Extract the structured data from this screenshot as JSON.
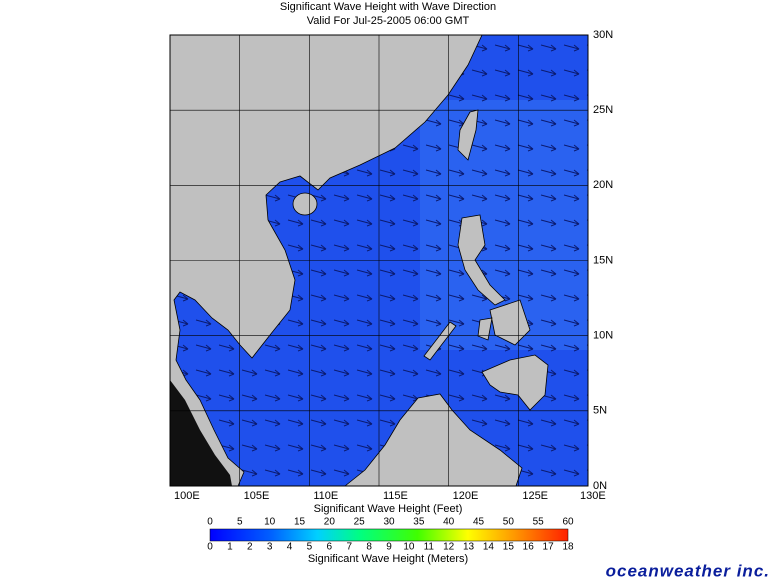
{
  "title": "Significant Wave Height with Wave Direction",
  "subtitle": "Valid For Jul-25-2005 06:00 GMT",
  "map": {
    "lon_range": [
      100,
      130
    ],
    "lat_range": [
      0,
      30
    ],
    "lon_ticks": [
      {
        "value": 100,
        "label": "100E"
      },
      {
        "value": 105,
        "label": "105E"
      },
      {
        "value": 110,
        "label": "110E"
      },
      {
        "value": 115,
        "label": "115E"
      },
      {
        "value": 120,
        "label": "120E"
      },
      {
        "value": 125,
        "label": "125E"
      },
      {
        "value": 130,
        "label": "130E"
      }
    ],
    "lat_ticks": [
      {
        "value": 0,
        "label": "0N"
      },
      {
        "value": 5,
        "label": "5N"
      },
      {
        "value": 10,
        "label": "10N"
      },
      {
        "value": 15,
        "label": "15N"
      },
      {
        "value": 20,
        "label": "20N"
      },
      {
        "value": 25,
        "label": "25N"
      },
      {
        "value": 30,
        "label": "30N"
      }
    ]
  },
  "colorbar": {
    "feet_label": "Significant Wave Height (Feet)",
    "feet_range": [
      0,
      60
    ],
    "feet_ticks": [
      0,
      5,
      10,
      15,
      20,
      25,
      30,
      35,
      40,
      45,
      50,
      55,
      60
    ],
    "meters_label": "Significant Wave Height (Meters)",
    "meters_range": [
      0,
      18
    ],
    "meters_ticks": [
      0,
      1,
      2,
      3,
      4,
      5,
      6,
      7,
      8,
      9,
      10,
      11,
      12,
      13,
      14,
      15,
      16,
      17,
      18
    ]
  },
  "logo": "oceanweather inc."
}
